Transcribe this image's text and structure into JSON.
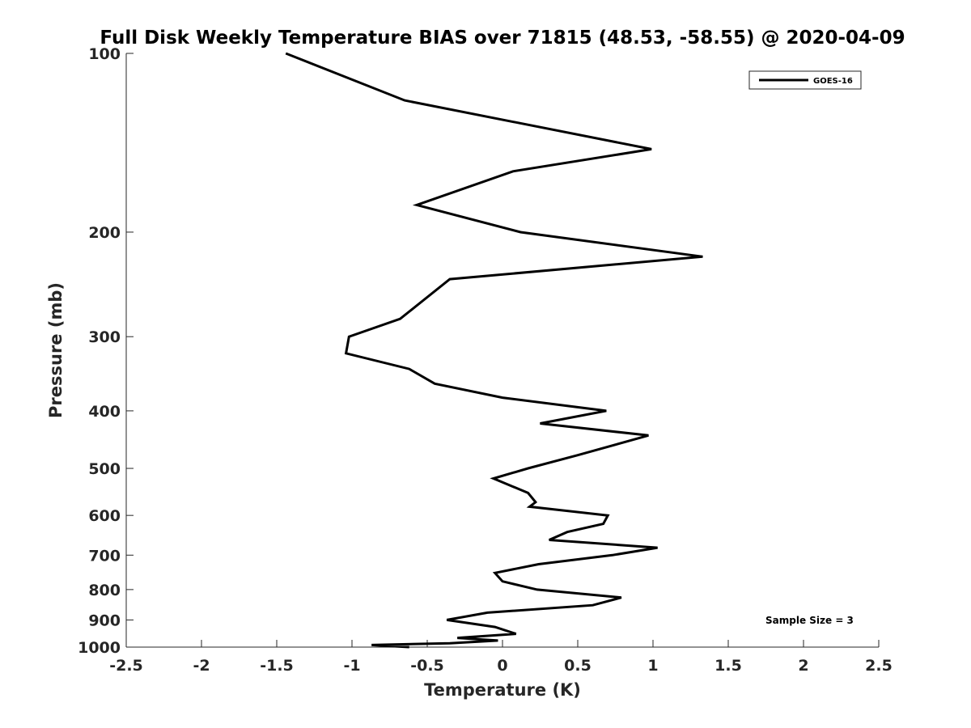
{
  "chart_data": {
    "type": "line",
    "title": "Full Disk Weekly Temperature BIAS over 71815 (48.53, -58.55) @ 2020-04-09",
    "xlabel": "Temperature (K)",
    "ylabel": "Pressure (mb)",
    "xlim": [
      -2.5,
      2.5
    ],
    "ylim": [
      100,
      1000
    ],
    "y_scale": "log",
    "y_reversed": true,
    "grid": false,
    "legend_position": "top-right",
    "x_ticks": [
      -2.5,
      -2,
      -1.5,
      -1,
      -0.5,
      0,
      0.5,
      1,
      1.5,
      2,
      2.5
    ],
    "x_tick_labels": [
      "-2.5",
      "-2",
      "-1.5",
      "-1",
      "-0.5",
      "0",
      "0.5",
      "1",
      "1.5",
      "2",
      "2.5"
    ],
    "y_ticks": [
      100,
      200,
      300,
      400,
      500,
      600,
      700,
      800,
      900,
      1000
    ],
    "y_tick_labels": [
      "100",
      "200",
      "300",
      "400",
      "500",
      "600",
      "700",
      "800",
      "900",
      "1000"
    ],
    "series": [
      {
        "name": "GOES-16",
        "color": "#000000",
        "points": [
          {
            "x": -1.44,
            "y": 100
          },
          {
            "x": -0.65,
            "y": 120
          },
          {
            "x": 0.99,
            "y": 145
          },
          {
            "x": 0.07,
            "y": 158
          },
          {
            "x": -0.57,
            "y": 180
          },
          {
            "x": 0.12,
            "y": 200
          },
          {
            "x": 1.33,
            "y": 220
          },
          {
            "x": -0.35,
            "y": 240
          },
          {
            "x": -0.68,
            "y": 280
          },
          {
            "x": -1.02,
            "y": 300
          },
          {
            "x": -1.04,
            "y": 320
          },
          {
            "x": -0.62,
            "y": 340
          },
          {
            "x": -0.45,
            "y": 360
          },
          {
            "x": 0.0,
            "y": 380
          },
          {
            "x": 0.69,
            "y": 400
          },
          {
            "x": 0.25,
            "y": 420
          },
          {
            "x": 0.97,
            "y": 440
          },
          {
            "x": 0.5,
            "y": 475
          },
          {
            "x": 0.17,
            "y": 500
          },
          {
            "x": -0.06,
            "y": 520
          },
          {
            "x": 0.17,
            "y": 550
          },
          {
            "x": 0.22,
            "y": 570
          },
          {
            "x": 0.18,
            "y": 580
          },
          {
            "x": 0.7,
            "y": 600
          },
          {
            "x": 0.67,
            "y": 620
          },
          {
            "x": 0.43,
            "y": 640
          },
          {
            "x": 0.31,
            "y": 660
          },
          {
            "x": 1.03,
            "y": 680
          },
          {
            "x": 0.73,
            "y": 700
          },
          {
            "x": 0.24,
            "y": 725
          },
          {
            "x": -0.05,
            "y": 750
          },
          {
            "x": 0.0,
            "y": 775
          },
          {
            "x": 0.23,
            "y": 800
          },
          {
            "x": 0.79,
            "y": 825
          },
          {
            "x": 0.6,
            "y": 850
          },
          {
            "x": -0.1,
            "y": 875
          },
          {
            "x": -0.37,
            "y": 900
          },
          {
            "x": -0.05,
            "y": 925
          },
          {
            "x": 0.09,
            "y": 950
          },
          {
            "x": -0.3,
            "y": 965
          },
          {
            "x": -0.03,
            "y": 975
          },
          {
            "x": -0.35,
            "y": 985
          },
          {
            "x": -0.87,
            "y": 992
          },
          {
            "x": -0.62,
            "y": 1000
          }
        ]
      }
    ],
    "annotation": "Sample Size = 3"
  }
}
